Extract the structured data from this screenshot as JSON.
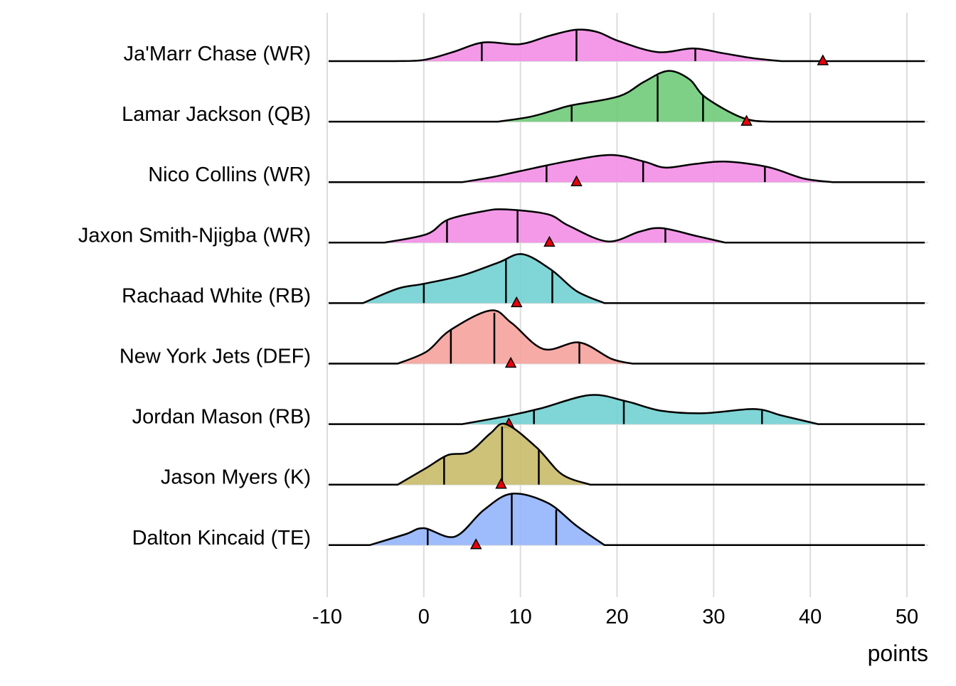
{
  "chart_data": {
    "type": "ridgeline",
    "title": "",
    "xlabel": "points",
    "ylabel": "",
    "xlim": [
      -10,
      52
    ],
    "x_ticks": [
      -10,
      0,
      10,
      20,
      30,
      40,
      50
    ],
    "x_tick_labels": [
      "-10",
      "0",
      "10",
      "20",
      "30",
      "40",
      "50"
    ],
    "grid": true,
    "density_units": "relative height (1 = row spacing)",
    "colors": {
      "WR": "#f38ee6",
      "QB": "#6fcb78",
      "RB": "#72d0d2",
      "DEF": "#f5a29c",
      "K": "#c9ba69",
      "TE": "#93b4fb"
    },
    "series": [
      {
        "name": "Ja'Marr Chase (WR)",
        "position": "WR",
        "density": [
          [
            -3,
            0
          ],
          [
            0,
            0.02
          ],
          [
            3,
            0.15
          ],
          [
            6.2,
            0.31
          ],
          [
            9.9,
            0.28
          ],
          [
            13,
            0.42
          ],
          [
            15.8,
            0.52
          ],
          [
            18,
            0.48
          ],
          [
            20.2,
            0.33
          ],
          [
            24.2,
            0.15
          ],
          [
            27.9,
            0.21
          ],
          [
            31,
            0.13
          ],
          [
            34,
            0.05
          ],
          [
            37,
            0
          ]
        ],
        "quantiles": [
          6.0,
          15.8,
          28.1
        ],
        "actual": 41.3
      },
      {
        "name": "Lamar Jackson (QB)",
        "position": "QB",
        "density": [
          [
            7.7,
            0
          ],
          [
            11,
            0.08
          ],
          [
            13.5,
            0.19
          ],
          [
            15.3,
            0.27
          ],
          [
            20.2,
            0.42
          ],
          [
            22.8,
            0.66
          ],
          [
            25.3,
            0.84
          ],
          [
            27.5,
            0.7
          ],
          [
            29,
            0.42
          ],
          [
            32,
            0.13
          ],
          [
            34,
            0.02
          ],
          [
            36,
            0
          ]
        ],
        "quantiles": [
          15.3,
          24.2,
          28.9
        ],
        "actual": 33.4
      },
      {
        "name": "Nico Collins (WR)",
        "position": "WR",
        "density": [
          [
            4,
            0
          ],
          [
            7,
            0.08
          ],
          [
            9.9,
            0.18
          ],
          [
            15,
            0.35
          ],
          [
            19.4,
            0.45
          ],
          [
            22.8,
            0.34
          ],
          [
            25,
            0.24
          ],
          [
            28,
            0.3
          ],
          [
            31.2,
            0.34
          ],
          [
            35.6,
            0.25
          ],
          [
            39.3,
            0.06
          ],
          [
            42.3,
            0
          ]
        ],
        "quantiles": [
          12.7,
          22.7,
          35.3
        ],
        "actual": 15.8
      },
      {
        "name": "Jaxon Smith-Njigba (WR)",
        "position": "WR",
        "density": [
          [
            -4.1,
            0
          ],
          [
            0.3,
            0.14
          ],
          [
            2.5,
            0.38
          ],
          [
            6.2,
            0.52
          ],
          [
            8.4,
            0.55
          ],
          [
            12.8,
            0.47
          ],
          [
            15,
            0.28
          ],
          [
            19,
            0.02
          ],
          [
            22.3,
            0.18
          ],
          [
            24.6,
            0.24
          ],
          [
            28.2,
            0.11
          ],
          [
            31.2,
            0
          ]
        ],
        "quantiles": [
          2.4,
          9.7,
          25.0
        ],
        "actual": 13.0
      },
      {
        "name": "Rachaad White (RB)",
        "position": "RB",
        "density": [
          [
            -6.3,
            0
          ],
          [
            -2.7,
            0.24
          ],
          [
            0,
            0.32
          ],
          [
            4,
            0.46
          ],
          [
            7.7,
            0.67
          ],
          [
            10.2,
            0.81
          ],
          [
            13.2,
            0.55
          ],
          [
            15.8,
            0.2
          ],
          [
            18.7,
            0
          ]
        ],
        "quantiles": [
          0.0,
          8.5,
          13.3
        ],
        "actual": 9.6
      },
      {
        "name": "New York Jets (DEF)",
        "position": "DEF",
        "density": [
          [
            -2.7,
            0
          ],
          [
            0.3,
            0.2
          ],
          [
            2.7,
            0.55
          ],
          [
            6.9,
            0.88
          ],
          [
            9.1,
            0.67
          ],
          [
            12.4,
            0.24
          ],
          [
            16.1,
            0.35
          ],
          [
            19.4,
            0.08
          ],
          [
            21.6,
            0
          ]
        ],
        "quantiles": [
          2.8,
          7.3,
          16.1
        ],
        "actual": 9.0
      },
      {
        "name": "Jordan Mason (RB)",
        "position": "RB",
        "density": [
          [
            4,
            0
          ],
          [
            8.8,
            0.14
          ],
          [
            12.1,
            0.26
          ],
          [
            17.2,
            0.48
          ],
          [
            20.9,
            0.38
          ],
          [
            24.6,
            0.22
          ],
          [
            29,
            0.18
          ],
          [
            34.2,
            0.25
          ],
          [
            37.1,
            0.14
          ],
          [
            40.8,
            0
          ]
        ],
        "quantiles": [
          11.4,
          20.7,
          35.0
        ],
        "actual": 8.8
      },
      {
        "name": "Jason Myers (K)",
        "position": "K",
        "density": [
          [
            -2.7,
            0
          ],
          [
            0.3,
            0.28
          ],
          [
            2.5,
            0.49
          ],
          [
            4.7,
            0.54
          ],
          [
            6.9,
            0.85
          ],
          [
            8.5,
            1.0
          ],
          [
            11.7,
            0.61
          ],
          [
            14.3,
            0.17
          ],
          [
            17.2,
            0
          ]
        ],
        "quantiles": [
          2.1,
          8.1,
          11.9
        ],
        "actual": 8.0
      },
      {
        "name": "Dalton Kincaid (TE)",
        "position": "TE",
        "density": [
          [
            -5.6,
            0
          ],
          [
            -1.9,
            0.18
          ],
          [
            0,
            0.28
          ],
          [
            3.2,
            0.14
          ],
          [
            6.2,
            0.58
          ],
          [
            9.1,
            0.85
          ],
          [
            12.8,
            0.7
          ],
          [
            15.8,
            0.32
          ],
          [
            18.7,
            0
          ]
        ],
        "quantiles": [
          0.4,
          9.1,
          13.7
        ],
        "actual": 5.4
      }
    ]
  }
}
